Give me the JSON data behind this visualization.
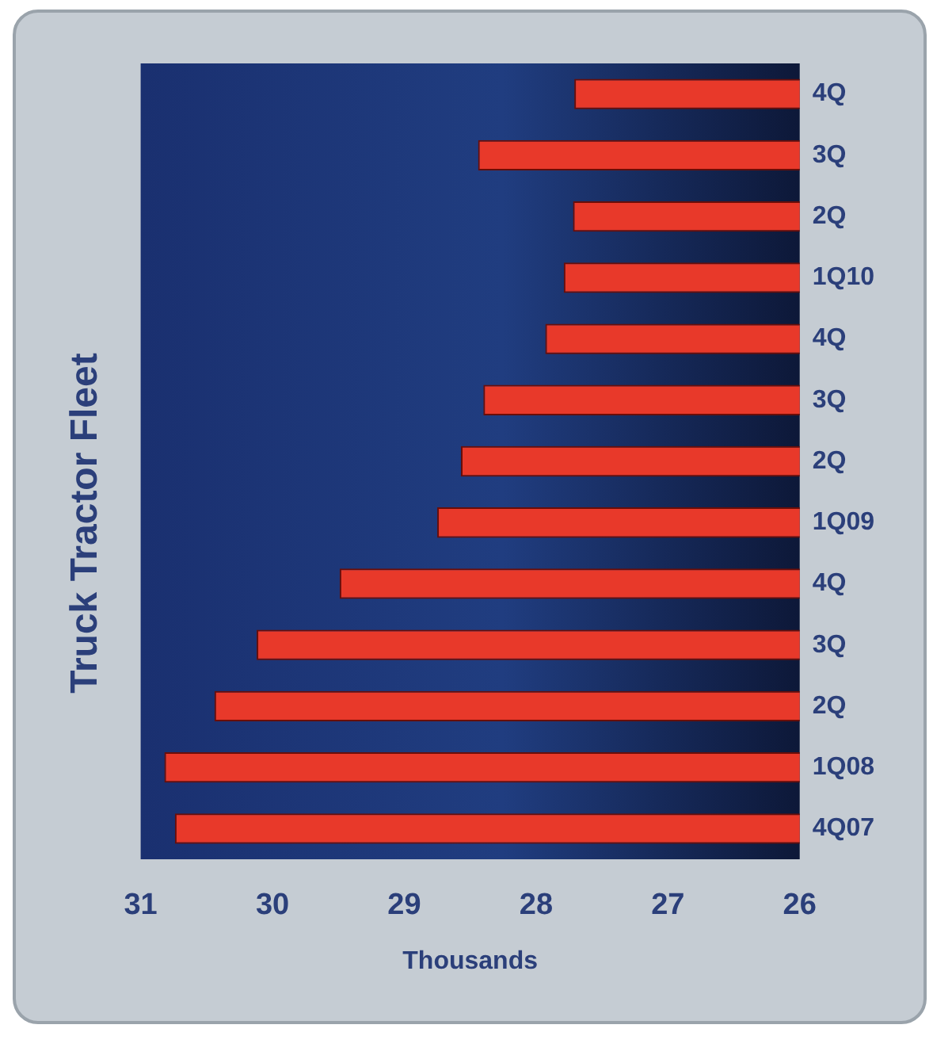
{
  "chart_data": {
    "type": "bar",
    "title": "Truck Tractor Fleet",
    "xlabel": "Thousands",
    "orientation": "horizontal",
    "categories": [
      "4Q",
      "3Q",
      "2Q",
      "1Q10",
      "4Q",
      "3Q",
      "2Q",
      "1Q09",
      "4Q",
      "3Q",
      "2Q",
      "1Q08",
      "4Q07"
    ],
    "values": [
      27.71,
      28.44,
      27.72,
      27.79,
      27.93,
      28.4,
      28.57,
      28.75,
      29.49,
      30.12,
      30.44,
      30.82,
      30.74
    ],
    "color": "#e8392a",
    "xlim": [
      31,
      26
    ],
    "xticks": [
      31,
      30,
      29,
      28,
      27,
      26
    ],
    "grid": false,
    "legend": false
  }
}
